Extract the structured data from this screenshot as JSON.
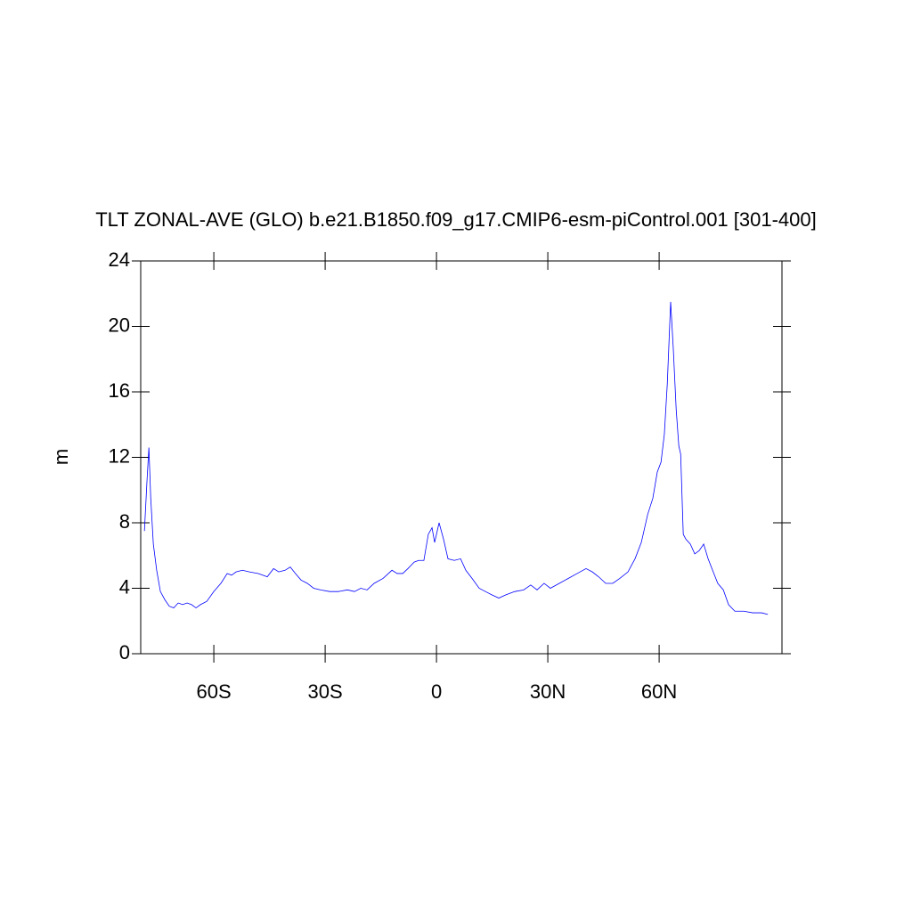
{
  "chart_data": {
    "type": "line",
    "title": "TLT ZONAL-AVE (GLO) b.e21.B1850.f09_g17.CMIP6-esm-piControl.001 [301-400]",
    "y_label": "m",
    "xlim": [
      -79.7,
      93.1
    ],
    "xticks": [
      {
        "value": -60,
        "label": "60S"
      },
      {
        "value": -30,
        "label": "30S"
      },
      0,
      {
        "value": 30,
        "label": "30N"
      },
      {
        "value": 60,
        "label": "60N"
      }
    ],
    "ylim": [
      0,
      24
    ],
    "yticks": [
      0,
      4,
      8,
      12,
      16,
      20,
      24
    ],
    "grid": false,
    "series": [
      {
        "color": "#0000ff",
        "x": [
          -78.7,
          -78.0,
          -77.5,
          -77.0,
          -76.3,
          -75.4,
          -74.4,
          -73.2,
          -72.0,
          -70.8,
          -69.6,
          -68.4,
          -67.2,
          -66.0,
          -64.8,
          -63.6,
          -61.9,
          -60.0,
          -58.1,
          -56.4,
          -55.2,
          -54.0,
          -52.3,
          -50.4,
          -48.0,
          -45.6,
          -43.9,
          -42.5,
          -40.8,
          -39.4,
          -38.0,
          -36.5,
          -34.8,
          -33.1,
          -31.2,
          -28.8,
          -26.4,
          -24.0,
          -22.1,
          -20.4,
          -18.7,
          -16.8,
          -14.4,
          -12.0,
          -10.6,
          -9.1,
          -7.7,
          -6.0,
          -4.8,
          -3.4,
          -2.2,
          -1.2,
          -0.5,
          0.7,
          1.9,
          3.1,
          4.8,
          6.5,
          7.9,
          9.6,
          11.5,
          13.2,
          14.9,
          16.8,
          18.7,
          21.1,
          23.5,
          25.4,
          27.1,
          29.0,
          30.7,
          33.1,
          35.5,
          37.9,
          40.3,
          42.0,
          43.7,
          45.6,
          47.5,
          49.4,
          51.6,
          53.5,
          55.2,
          56.9,
          58.3,
          59.5,
          60.5,
          61.4,
          62.2,
          63.1,
          63.8,
          64.6,
          65.3,
          65.8,
          66.5,
          67.2,
          68.4,
          69.6,
          70.8,
          72.0,
          73.2,
          74.4,
          75.8,
          77.3,
          78.7,
          80.4,
          82.8,
          85.2,
          87.6,
          89.3
        ],
        "values": [
          7.5,
          10.6,
          12.6,
          9.5,
          6.7,
          5.1,
          3.8,
          3.3,
          2.9,
          2.8,
          3.1,
          3.0,
          3.1,
          3.0,
          2.8,
          3.0,
          3.2,
          3.8,
          4.3,
          4.9,
          4.8,
          5.0,
          5.1,
          5.0,
          4.9,
          4.7,
          5.2,
          5.0,
          5.1,
          5.3,
          4.9,
          4.5,
          4.3,
          4.0,
          3.9,
          3.8,
          3.8,
          3.9,
          3.8,
          4.0,
          3.9,
          4.3,
          4.6,
          5.1,
          4.9,
          4.9,
          5.2,
          5.6,
          5.7,
          5.7,
          7.3,
          7.7,
          6.8,
          8.0,
          7.0,
          5.8,
          5.7,
          5.8,
          5.1,
          4.6,
          4.0,
          3.8,
          3.6,
          3.4,
          3.6,
          3.8,
          3.9,
          4.2,
          3.9,
          4.3,
          4.0,
          4.3,
          4.6,
          4.9,
          5.2,
          5.0,
          4.7,
          4.3,
          4.3,
          4.6,
          5.0,
          5.8,
          6.8,
          8.5,
          9.5,
          11.1,
          11.7,
          13.4,
          16.5,
          21.5,
          18.7,
          14.9,
          12.7,
          12.2,
          7.3,
          7.0,
          6.7,
          6.1,
          6.3,
          6.7,
          5.8,
          5.1,
          4.3,
          3.9,
          3.0,
          2.6,
          2.6,
          2.5,
          2.5,
          2.4
        ]
      }
    ]
  }
}
